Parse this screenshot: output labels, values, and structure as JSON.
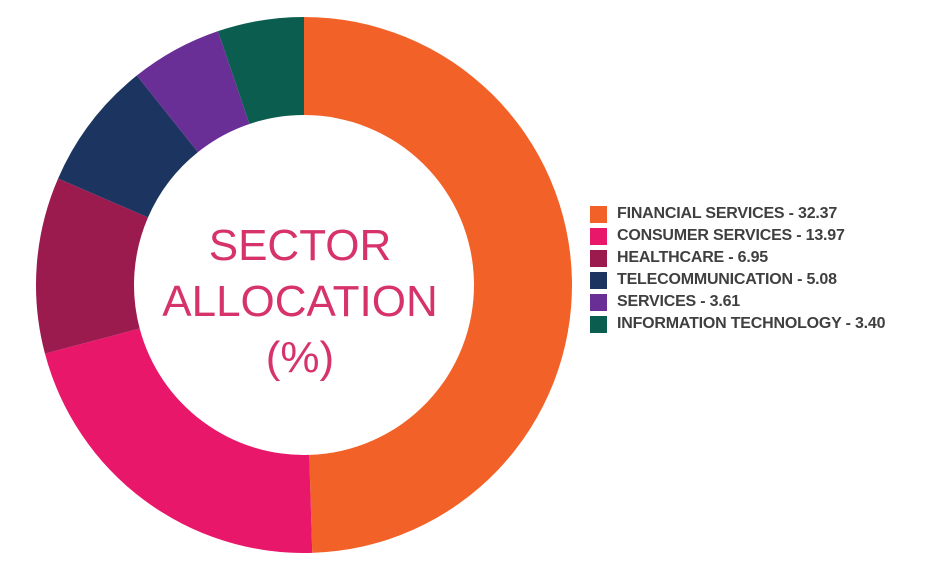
{
  "chart_data": {
    "type": "pie",
    "title_lines": [
      "SECTOR",
      "ALLOCATION",
      "(%)"
    ],
    "legend_position": "right",
    "slices": [
      {
        "label": "FINANCIAL SERVICES - 32.37",
        "name": "FINANCIAL SERVICES",
        "value": 32.37,
        "color": "#f26228"
      },
      {
        "label": "CONSUMER SERVICES - 13.97",
        "name": "CONSUMER SERVICES",
        "value": 13.97,
        "color": "#e8176a"
      },
      {
        "label": "HEALTHCARE - 6.95",
        "name": "HEALTHCARE",
        "value": 6.95,
        "color": "#9b1b4f"
      },
      {
        "label": "TELECOMMUNICATION - 5.08",
        "name": "TELECOMMUNICATION",
        "value": 5.08,
        "color": "#1c3560"
      },
      {
        "label": "SERVICES - 3.61",
        "name": "SERVICES",
        "value": 3.61,
        "color": "#6a2f96"
      },
      {
        "label": "INFORMATION TECHNOLOGY - 3.40",
        "name": "INFORMATION TECHNOLOGY",
        "value": 3.4,
        "color": "#0b5e4f"
      }
    ]
  },
  "colors": {
    "title": "#d6336c",
    "legend_text": "#3f3f3f"
  }
}
